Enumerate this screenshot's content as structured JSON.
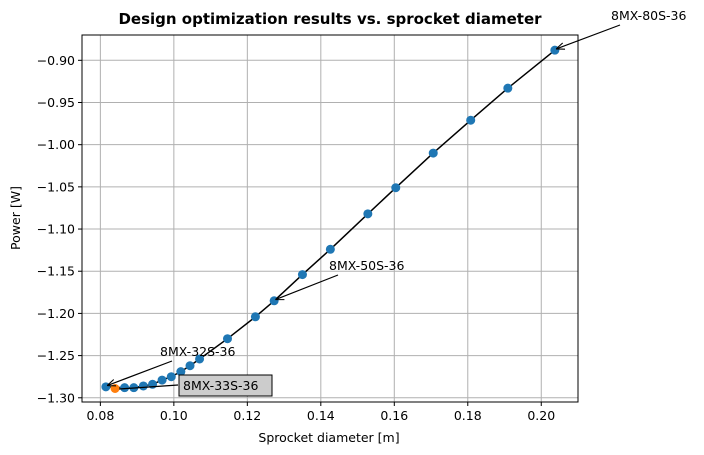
{
  "chart_data": {
    "type": "line",
    "title": "Design optimization results vs. sprocket diameter",
    "xlabel": "Sprocket diameter [m]",
    "ylabel": "Power [W]",
    "xlim": [
      0.075,
      0.21
    ],
    "ylim": [
      -1.305,
      -0.87
    ],
    "grid": true,
    "x_ticks": [
      0.08,
      0.1,
      0.12,
      0.14,
      0.16,
      0.18,
      0.2
    ],
    "x_tick_labels": [
      "0.08",
      "0.10",
      "0.12",
      "0.14",
      "0.16",
      "0.18",
      "0.20"
    ],
    "y_ticks": [
      -0.9,
      -0.95,
      -1.0,
      -1.05,
      -1.1,
      -1.15,
      -1.2,
      -1.25,
      -1.3
    ],
    "y_tick_labels": [
      "−0.90",
      "−0.95",
      "−1.00",
      "−1.05",
      "−1.10",
      "−1.15",
      "−1.20",
      "−1.25",
      "−1.30"
    ],
    "line_color": "#000000",
    "marker_color": "#1f77b4",
    "highlight_color": "#ff7f0e",
    "series": [
      {
        "x": [
          0.0815,
          0.0866,
          0.0891,
          0.0917,
          0.0942,
          0.0968,
          0.0993,
          0.1019,
          0.1044,
          0.107,
          0.1146,
          0.1222,
          0.1273,
          0.135,
          0.1426,
          0.1528,
          0.1604,
          0.1706,
          0.1808,
          0.1909,
          0.2037
        ],
        "y": [
          -1.287,
          -1.288,
          -1.288,
          -1.286,
          -1.284,
          -1.279,
          -1.275,
          -1.269,
          -1.262,
          -1.254,
          -1.23,
          -1.204,
          -1.185,
          -1.154,
          -1.124,
          -1.082,
          -1.051,
          -1.01,
          -0.971,
          -0.933,
          -0.888
        ]
      }
    ],
    "highlight_point": {
      "x": 0.084,
      "y": -1.289
    },
    "annotations": [
      {
        "text": "8MX-80S-36",
        "x": 0.2037,
        "y": -0.888
      },
      {
        "text": "8MX-50S-36",
        "x": 0.1273,
        "y": -1.185
      },
      {
        "text": "8MX-32S-36",
        "x": 0.0815,
        "y": -1.287
      },
      {
        "text": "8MX-33S-36",
        "x": 0.084,
        "y": -1.289,
        "boxed": true,
        "box_fill": "#cccccc"
      }
    ]
  }
}
